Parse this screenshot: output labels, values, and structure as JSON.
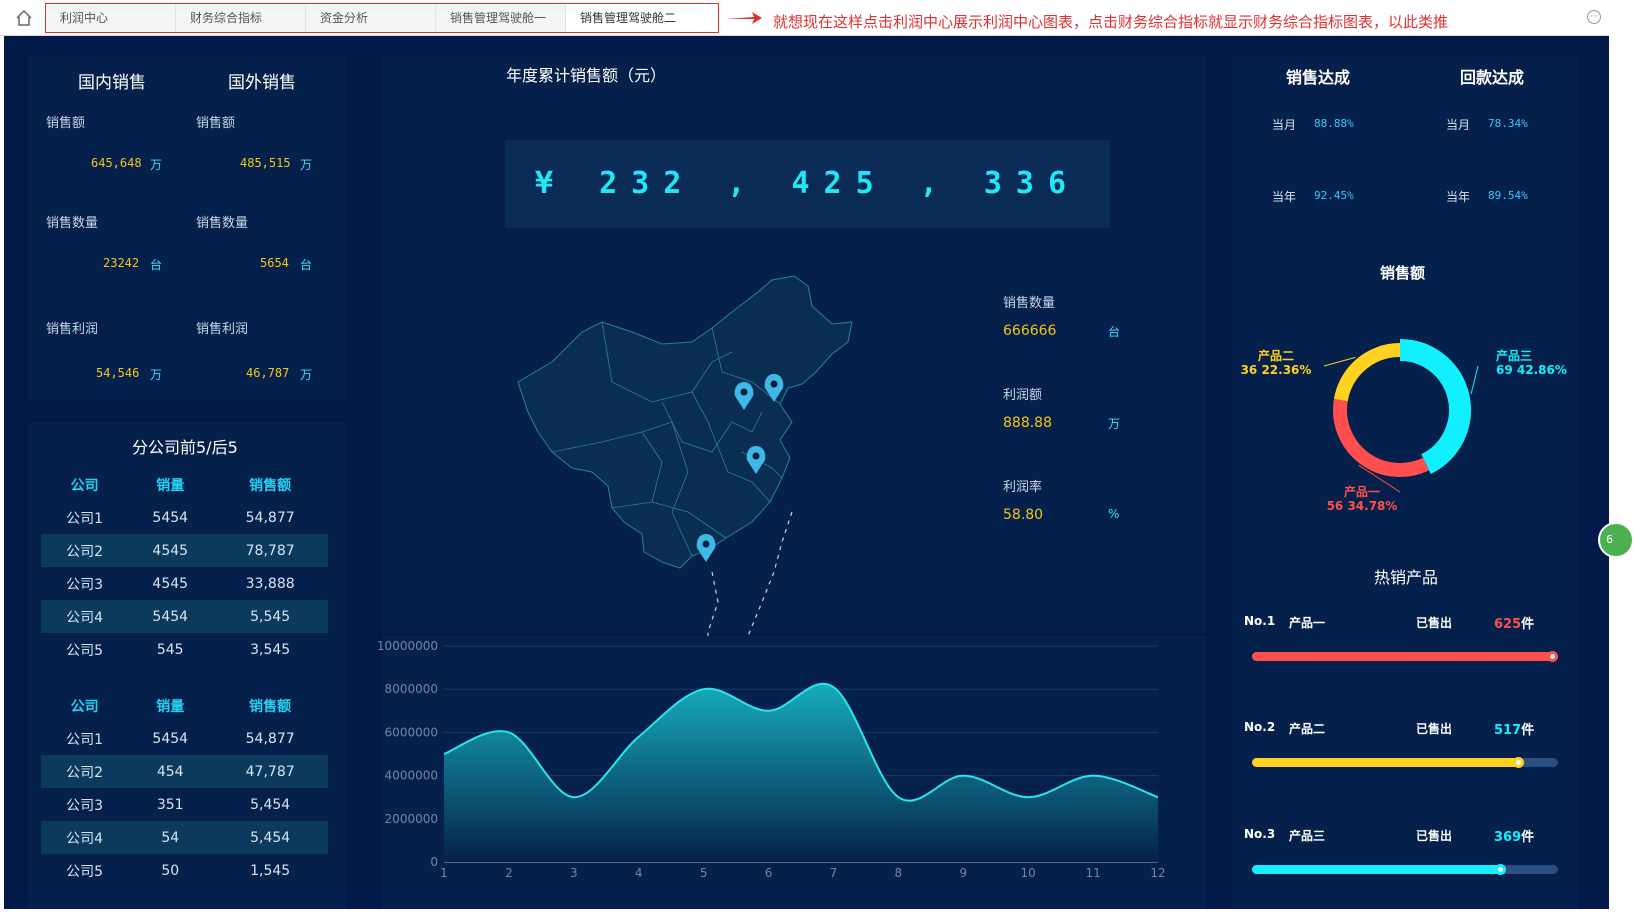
{
  "topbar": {
    "tabs": [
      "利润中心",
      "财务综合指标",
      "资金分析",
      "销售管理驾驶舱一",
      "销售管理驾驶舱二"
    ],
    "active_tab": 4,
    "note": "就想现在这样点击利润中心展示利润中心图表，点击财务综合指标就显示财务综合指标图表，以此类推",
    "badge": "6"
  },
  "sales": {
    "domestic_title": "国内销售",
    "foreign_title": "国外销售",
    "domestic": [
      {
        "label": "销售额",
        "value": "645,648",
        "unit": "万"
      },
      {
        "label": "销售数量",
        "value": "23242",
        "unit": "台"
      },
      {
        "label": "销售利润",
        "value": "54,546",
        "unit": "万"
      }
    ],
    "foreign": [
      {
        "label": "销售额",
        "value": "485,515",
        "unit": "万"
      },
      {
        "label": "销售数量",
        "value": "5654",
        "unit": "台"
      },
      {
        "label": "销售利润",
        "value": "46,787",
        "unit": "万"
      }
    ]
  },
  "branch": {
    "title": "分公司前5/后5",
    "headers": [
      "公司",
      "销量",
      "销售额"
    ],
    "top5": [
      [
        "公司1",
        "5454",
        "54,877"
      ],
      [
        "公司2",
        "4545",
        "78,787"
      ],
      [
        "公司3",
        "4545",
        "33,888"
      ],
      [
        "公司4",
        "5454",
        "5,545"
      ],
      [
        "公司5",
        "545",
        "3,545"
      ]
    ],
    "bottom5": [
      [
        "公司1",
        "5454",
        "54,877"
      ],
      [
        "公司2",
        "454",
        "47,787"
      ],
      [
        "公司3",
        "351",
        "5,454"
      ],
      [
        "公司4",
        "54",
        "5,454"
      ],
      [
        "公司5",
        "50",
        "1,545"
      ]
    ]
  },
  "center": {
    "title": "年度累计销售额（元）",
    "total": "¥ 232 , 425 , 336",
    "metrics": [
      {
        "label": "销售数量",
        "value": "666666",
        "unit": "台"
      },
      {
        "label": "利润额",
        "value": "888.88",
        "unit": "万"
      },
      {
        "label": "利润率",
        "value": "58.80",
        "unit": "%"
      }
    ]
  },
  "chart_data": {
    "type": "area",
    "x": [
      1,
      2,
      3,
      4,
      5,
      6,
      7,
      8,
      9,
      10,
      11,
      12
    ],
    "y": [
      5000000,
      6000000,
      3000000,
      5800000,
      8000000,
      7000000,
      8100000,
      3000000,
      4000000,
      3000000,
      4000000,
      3000000
    ],
    "ylim": [
      0,
      10000000
    ],
    "yticks": [
      "0",
      "2000000",
      "4000000",
      "6000000",
      "8000000",
      "10000000"
    ],
    "xticks": [
      "1",
      "2",
      "3",
      "4",
      "5",
      "6",
      "7",
      "8",
      "9",
      "10",
      "11",
      "12"
    ],
    "grid": true,
    "colors": {
      "line": "#28e6f0",
      "fill_top": "#17b4c0",
      "fill_bottom": "#05204a"
    }
  },
  "achieve": {
    "sales_title": "销售达成",
    "payment_title": "回款达成",
    "sales": [
      {
        "label": "当月",
        "value": "88.88%"
      },
      {
        "label": "当年",
        "value": "92.45%"
      }
    ],
    "payment": [
      {
        "label": "当月",
        "value": "78.34%"
      },
      {
        "label": "当年",
        "value": "89.54%"
      }
    ]
  },
  "donut": {
    "title": "销售额",
    "slices": [
      {
        "name": "产品三",
        "value": 69,
        "pct": "42.86%",
        "color": "#12f0ff"
      },
      {
        "name": "产品一",
        "value": 56,
        "pct": "34.78%",
        "color": "#ff4e4e"
      },
      {
        "name": "产品二",
        "value": 36,
        "pct": "22.36%",
        "color": "#ffd21f"
      }
    ]
  },
  "hot": {
    "title": "热销产品",
    "sold_label": "已售出",
    "count_unit": "件",
    "items": [
      {
        "rank": "No.1",
        "name": "产品一",
        "count": "625",
        "fraction": 1.0,
        "color": "#ff4e4e"
      },
      {
        "rank": "No.2",
        "name": "产品二",
        "count": "517",
        "fraction": 0.89,
        "color": "#ffd21f"
      },
      {
        "rank": "No.3",
        "name": "产品三",
        "count": "369",
        "fraction": 0.83,
        "color": "#12f0ff"
      }
    ]
  }
}
